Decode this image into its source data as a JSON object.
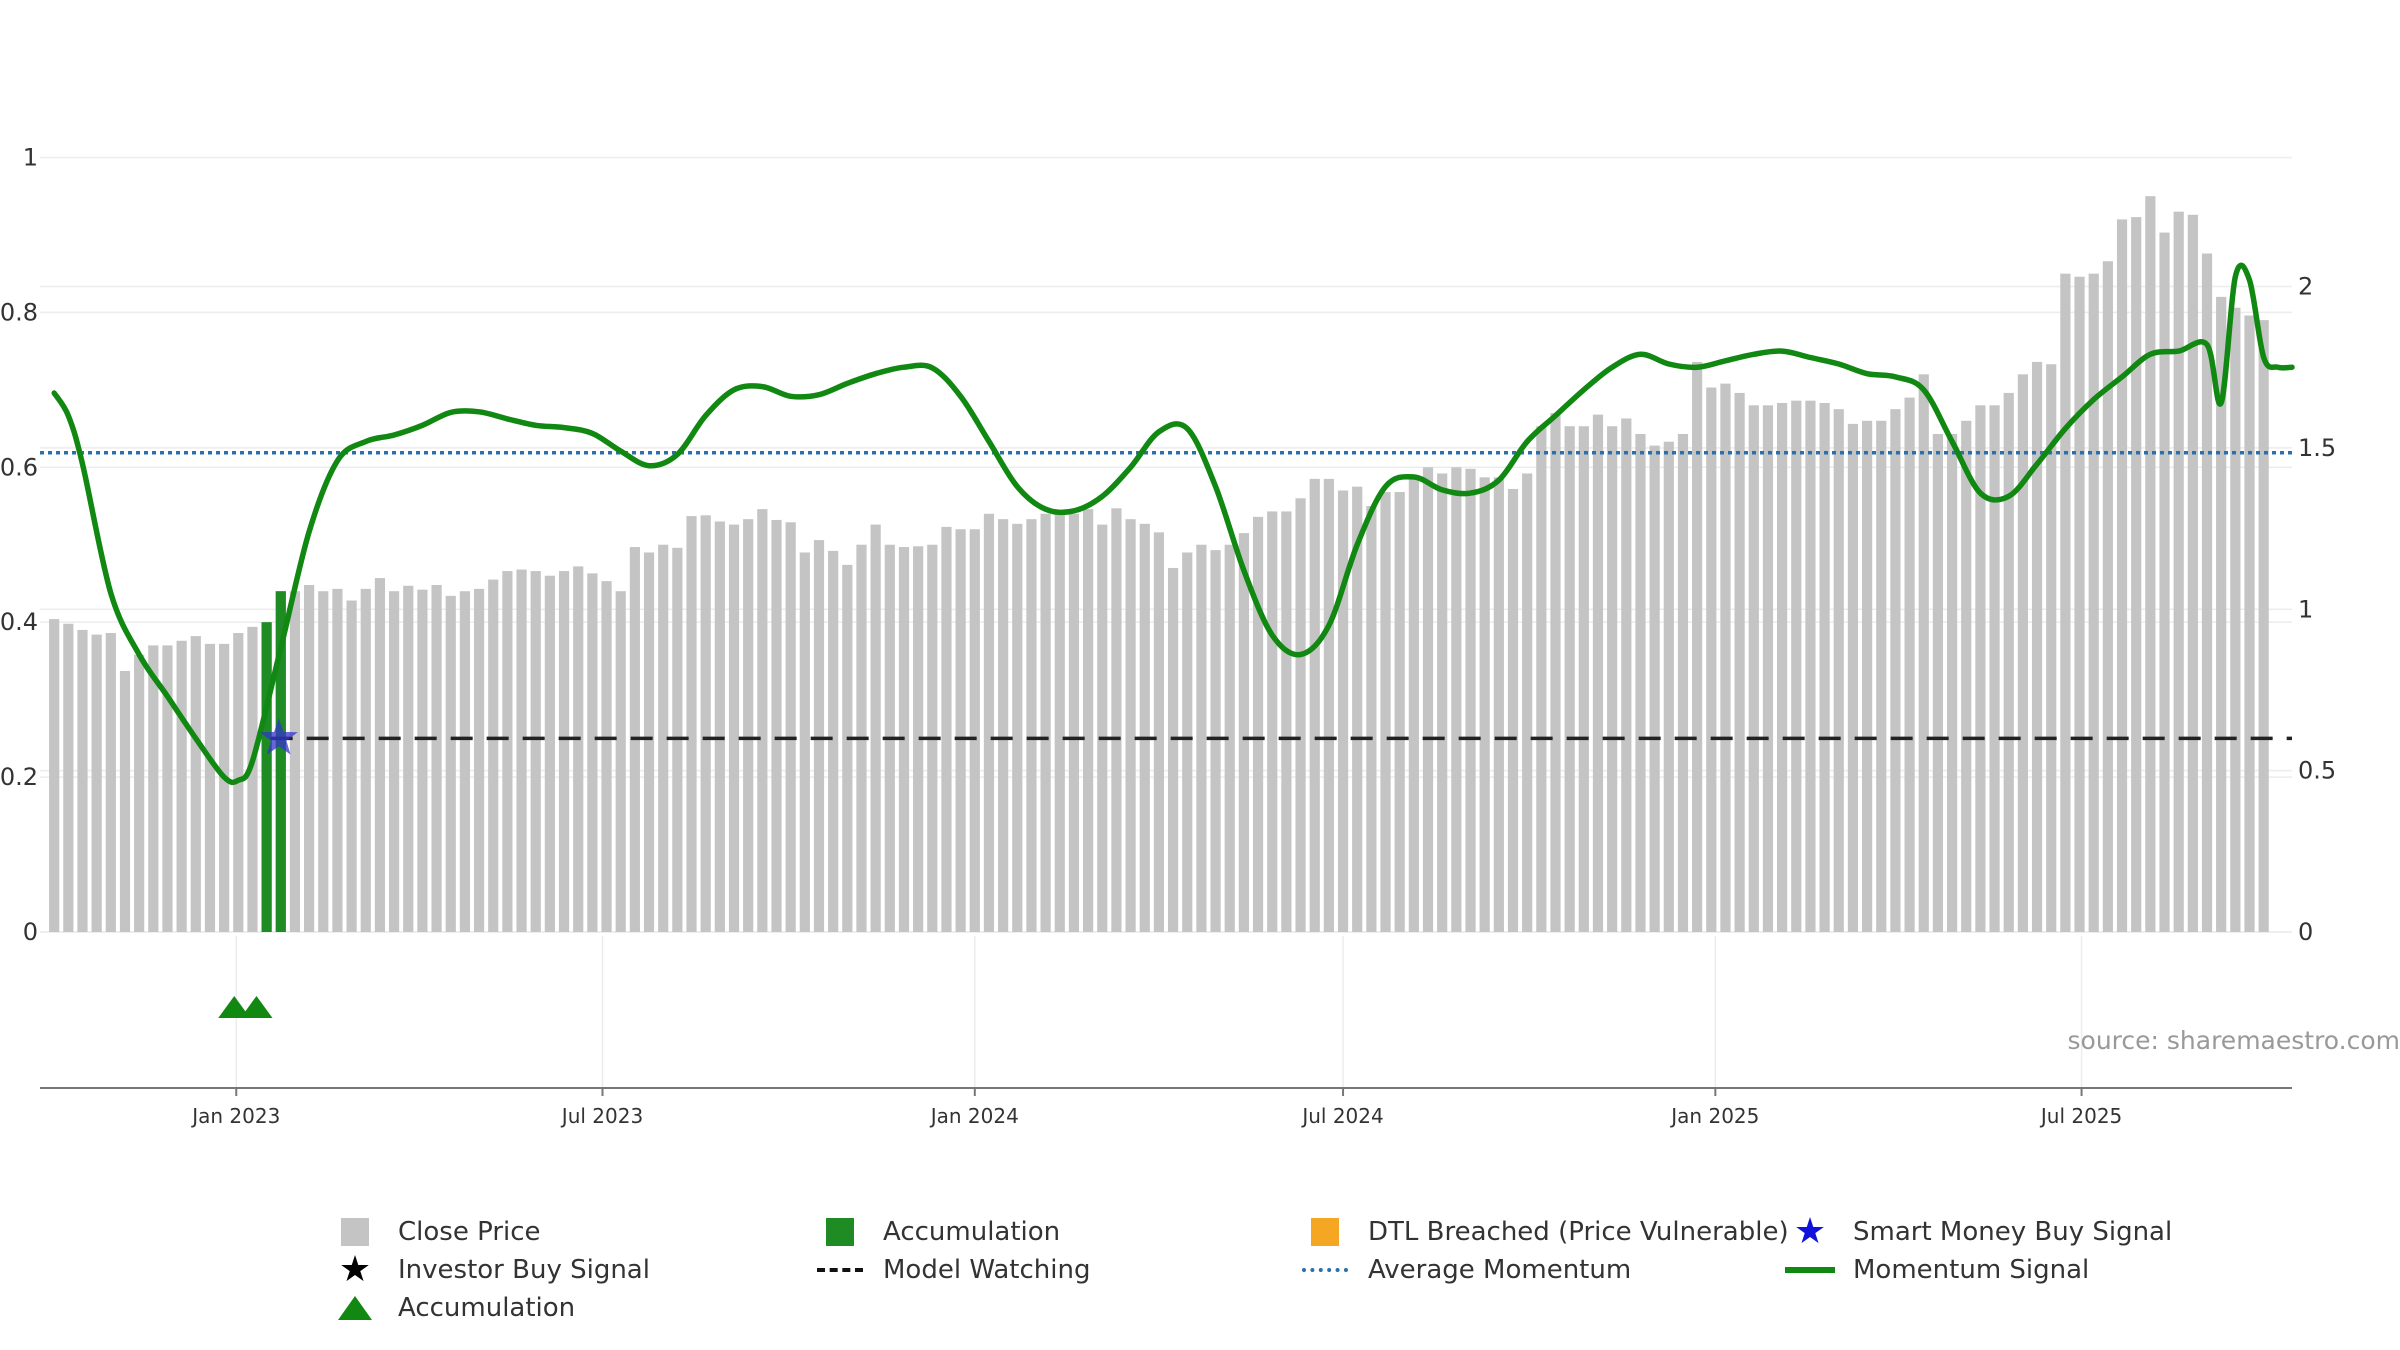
{
  "colors": {
    "close_price": "#c4c4c4",
    "accumulation": "#1e8b24",
    "accumulation_marker": "#118811",
    "dtl": "#f5a623",
    "investor_star": "#000000",
    "smart_money_star": "#3333cc",
    "model_watching": "#222222",
    "average_momentum": "#2a6fae",
    "momentum": "#118811",
    "grid": "#ececec",
    "axis_text": "#333333",
    "watermark": "#999999"
  },
  "watermark": "source: sharemaestro.com",
  "legend": {
    "close_price": "Close Price",
    "accumulation_bar": "Accumulation",
    "dtl_breached": "DTL Breached (Price Vulnerable)",
    "smart_money": "Smart Money Buy Signal",
    "investor_buy": "Investor Buy Signal",
    "model_watching": "Model Watching",
    "average_momentum": "Average Momentum",
    "momentum_signal": "Momentum Signal",
    "accumulation_marker": "Accumulation"
  },
  "chart_data": {
    "type": "bar",
    "title": "",
    "x_ticks": [
      {
        "date": "2023-01-01",
        "label": "Jan 2023"
      },
      {
        "date": "2023-07-01",
        "label": "Jul 2023"
      },
      {
        "date": "2024-01-01",
        "label": "Jan 2024"
      },
      {
        "date": "2024-07-01",
        "label": "Jul 2024"
      },
      {
        "date": "2025-01-01",
        "label": "Jan 2025"
      },
      {
        "date": "2025-07-01",
        "label": "Jul 2025"
      }
    ],
    "x_range": [
      "2022-09-26",
      "2025-10-13"
    ],
    "first_bar_date": "2022-10-03",
    "bar_interval_days": 7,
    "left_axis": {
      "range": [
        0,
        1.1
      ],
      "ticks": [
        0,
        0.2,
        0.4,
        0.6,
        0.8,
        1
      ],
      "tick_labels": [
        "0",
        "0.2",
        "0.4",
        "0.6",
        "0.8",
        "1"
      ]
    },
    "right_axis": {
      "range": [
        0,
        2.64
      ],
      "ticks": [
        0,
        0.5,
        1,
        1.5,
        2
      ],
      "tick_labels": [
        "0",
        "0.5",
        "1",
        "1.5",
        "2"
      ]
    },
    "close_price": [
      0.404,
      0.398,
      0.39,
      0.384,
      0.386,
      0.337,
      0.358,
      0.37,
      0.37,
      0.376,
      0.382,
      0.372,
      0.372,
      0.386,
      0.394,
      0.4,
      0.44,
      0.44,
      0.448,
      0.44,
      0.443,
      0.428,
      0.443,
      0.457,
      0.44,
      0.447,
      0.442,
      0.448,
      0.434,
      0.44,
      0.443,
      0.455,
      0.466,
      0.468,
      0.466,
      0.46,
      0.466,
      0.472,
      0.463,
      0.453,
      0.44,
      0.497,
      0.49,
      0.5,
      0.496,
      0.537,
      0.538,
      0.53,
      0.526,
      0.533,
      0.546,
      0.532,
      0.529,
      0.49,
      0.506,
      0.492,
      0.474,
      0.5,
      0.526,
      0.5,
      0.497,
      0.498,
      0.5,
      0.523,
      0.52,
      0.52,
      0.54,
      0.533,
      0.527,
      0.533,
      0.54,
      0.54,
      0.54,
      0.546,
      0.526,
      0.547,
      0.533,
      0.527,
      0.516,
      0.47,
      0.49,
      0.5,
      0.493,
      0.5,
      0.515,
      0.536,
      0.543,
      0.543,
      0.56,
      0.585,
      0.585,
      0.57,
      0.575,
      0.55,
      0.568,
      0.568,
      0.585,
      0.6,
      0.592,
      0.6,
      0.598,
      0.587,
      0.587,
      0.572,
      0.592,
      0.653,
      0.67,
      0.653,
      0.653,
      0.668,
      0.653,
      0.663,
      0.643,
      0.628,
      0.633,
      0.643,
      0.736,
      0.703,
      0.708,
      0.696,
      0.68,
      0.68,
      0.683,
      0.686,
      0.686,
      0.683,
      0.675,
      0.656,
      0.66,
      0.66,
      0.675,
      0.69,
      0.72,
      0.643,
      0.643,
      0.66,
      0.68,
      0.68,
      0.696,
      0.72,
      0.736,
      0.733,
      0.85,
      0.846,
      0.85,
      0.866,
      0.92,
      0.923,
      0.95,
      0.903,
      0.93,
      0.926,
      0.876,
      0.82,
      0.806,
      0.796,
      0.79
    ],
    "accumulation_bars": [
      {
        "index": 15,
        "value": 0.4
      },
      {
        "index": 16,
        "value": 0.44
      }
    ],
    "accumulation_markers": [
      {
        "date": "2022-12-31"
      },
      {
        "date": "2023-01-11"
      }
    ],
    "smart_money_signal": {
      "date": "2023-01-22",
      "y": 0.25
    },
    "model_watching": {
      "from": "2023-01-18",
      "to": "2025-10-13",
      "y": 0.25
    },
    "average_momentum": 1.485,
    "momentum": [
      [
        "2022-10-03",
        1.67
      ],
      [
        "2022-10-10",
        1.6
      ],
      [
        "2022-10-17",
        1.45
      ],
      [
        "2022-10-31",
        1.05
      ],
      [
        "2022-11-14",
        0.86
      ],
      [
        "2022-11-28",
        0.73
      ],
      [
        "2022-12-12",
        0.6
      ],
      [
        "2022-12-26",
        0.48
      ],
      [
        "2023-01-02",
        0.47
      ],
      [
        "2023-01-09",
        0.53
      ],
      [
        "2023-01-23",
        0.88
      ],
      [
        "2023-02-06",
        1.24
      ],
      [
        "2023-02-20",
        1.46
      ],
      [
        "2023-03-06",
        1.52
      ],
      [
        "2023-03-20",
        1.54
      ],
      [
        "2023-04-03",
        1.57
      ],
      [
        "2023-04-17",
        1.61
      ],
      [
        "2023-05-01",
        1.612
      ],
      [
        "2023-05-15",
        1.59
      ],
      [
        "2023-05-29",
        1.57
      ],
      [
        "2023-06-12",
        1.563
      ],
      [
        "2023-06-26",
        1.545
      ],
      [
        "2023-07-10",
        1.49
      ],
      [
        "2023-07-24",
        1.445
      ],
      [
        "2023-08-07",
        1.48
      ],
      [
        "2023-08-21",
        1.6
      ],
      [
        "2023-09-04",
        1.68
      ],
      [
        "2023-09-18",
        1.69
      ],
      [
        "2023-10-02",
        1.66
      ],
      [
        "2023-10-16",
        1.665
      ],
      [
        "2023-10-30",
        1.7
      ],
      [
        "2023-11-13",
        1.73
      ],
      [
        "2023-11-27",
        1.75
      ],
      [
        "2023-12-11",
        1.748
      ],
      [
        "2023-12-25",
        1.66
      ],
      [
        "2024-01-08",
        1.52
      ],
      [
        "2024-01-22",
        1.38
      ],
      [
        "2024-02-05",
        1.31
      ],
      [
        "2024-02-19",
        1.305
      ],
      [
        "2024-03-04",
        1.35
      ],
      [
        "2024-03-18",
        1.44
      ],
      [
        "2024-04-01",
        1.55
      ],
      [
        "2024-04-15",
        1.56
      ],
      [
        "2024-04-29",
        1.38
      ],
      [
        "2024-05-13",
        1.12
      ],
      [
        "2024-05-27",
        0.92
      ],
      [
        "2024-06-10",
        0.86
      ],
      [
        "2024-06-24",
        0.95
      ],
      [
        "2024-07-08",
        1.2
      ],
      [
        "2024-07-22",
        1.38
      ],
      [
        "2024-08-05",
        1.41
      ],
      [
        "2024-08-19",
        1.37
      ],
      [
        "2024-09-02",
        1.36
      ],
      [
        "2024-09-16",
        1.4
      ],
      [
        "2024-09-30",
        1.52
      ],
      [
        "2024-10-14",
        1.6
      ],
      [
        "2024-10-28",
        1.68
      ],
      [
        "2024-11-11",
        1.75
      ],
      [
        "2024-11-25",
        1.79
      ],
      [
        "2024-12-09",
        1.76
      ],
      [
        "2024-12-23",
        1.75
      ],
      [
        "2025-01-06",
        1.77
      ],
      [
        "2025-01-20",
        1.79
      ],
      [
        "2025-02-03",
        1.8
      ],
      [
        "2025-02-17",
        1.78
      ],
      [
        "2025-03-03",
        1.76
      ],
      [
        "2025-03-17",
        1.73
      ],
      [
        "2025-03-31",
        1.72
      ],
      [
        "2025-04-14",
        1.68
      ],
      [
        "2025-04-28",
        1.52
      ],
      [
        "2025-05-12",
        1.36
      ],
      [
        "2025-05-26",
        1.35
      ],
      [
        "2025-06-09",
        1.45
      ],
      [
        "2025-06-23",
        1.56
      ],
      [
        "2025-07-07",
        1.65
      ],
      [
        "2025-07-21",
        1.72
      ],
      [
        "2025-08-04",
        1.79
      ],
      [
        "2025-08-18",
        1.8
      ],
      [
        "2025-09-01",
        1.82
      ],
      [
        "2025-09-08",
        1.64
      ],
      [
        "2025-09-15",
        2.03
      ],
      [
        "2025-09-22",
        2.02
      ],
      [
        "2025-09-29",
        1.78
      ],
      [
        "2025-10-06",
        1.75
      ],
      [
        "2025-10-13",
        1.75
      ]
    ]
  }
}
